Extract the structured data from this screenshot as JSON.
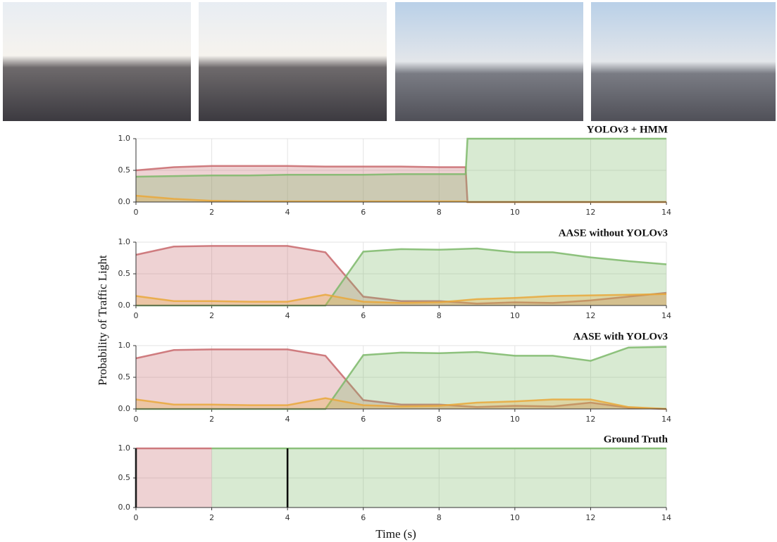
{
  "chart_data": [
    {
      "type": "area",
      "title": "YOLOv3 + HMM",
      "x": [
        0,
        1,
        2,
        3,
        4,
        5,
        6,
        7,
        8,
        8.7,
        8.75,
        9,
        10,
        11,
        12,
        13,
        14
      ],
      "series": [
        {
          "color": "#c8696c",
          "values": [
            0.5,
            0.55,
            0.57,
            0.57,
            0.57,
            0.56,
            0.56,
            0.56,
            0.55,
            0.55,
            0,
            0,
            0,
            0,
            0,
            0,
            0
          ]
        },
        {
          "color": "#7db86a",
          "values": [
            0.4,
            0.41,
            0.42,
            0.42,
            0.43,
            0.43,
            0.43,
            0.44,
            0.44,
            0.44,
            1.0,
            1.0,
            1.0,
            1.0,
            1.0,
            1.0,
            1.0
          ]
        },
        {
          "color": "#e9a83b",
          "values": [
            0.1,
            0.05,
            0.02,
            0.01,
            0.01,
            0.01,
            0.01,
            0.01,
            0.01,
            0.01,
            0,
            0,
            0,
            0,
            0,
            0,
            0
          ]
        }
      ],
      "xlim": [
        0,
        14
      ],
      "xticks": [
        0,
        2,
        4,
        6,
        8,
        10,
        12,
        14
      ],
      "ylim": [
        0,
        1
      ],
      "yticks": [
        {
          "value": 0,
          "label": "0.0"
        },
        0.5,
        {
          "value": 1,
          "label": "1.0"
        }
      ],
      "grid": true
    },
    {
      "type": "area",
      "title": "AASE without YOLOv3",
      "x": [
        0,
        1,
        2,
        3,
        4,
        5,
        6,
        7,
        8,
        9,
        10,
        11,
        12,
        13,
        14
      ],
      "series": [
        {
          "color": "#c8696c",
          "values": [
            0.8,
            0.93,
            0.94,
            0.94,
            0.94,
            0.84,
            0.14,
            0.07,
            0.07,
            0.03,
            0.05,
            0.04,
            0.08,
            0.14,
            0.2
          ]
        },
        {
          "color": "#7db86a",
          "values": [
            0,
            0,
            0,
            0,
            0,
            0,
            0.85,
            0.89,
            0.88,
            0.9,
            0.84,
            0.84,
            0.76,
            0.7,
            0.65
          ]
        },
        {
          "color": "#e9a83b",
          "values": [
            0.15,
            0.07,
            0.07,
            0.06,
            0.06,
            0.17,
            0.06,
            0.04,
            0.05,
            0.1,
            0.12,
            0.15,
            0.16,
            0.17,
            0.18
          ]
        }
      ],
      "xlim": [
        0,
        14
      ],
      "xticks": [
        0,
        2,
        4,
        6,
        8,
        10,
        12,
        14
      ],
      "ylim": [
        0,
        1
      ],
      "yticks": [
        {
          "value": 0,
          "label": "0.0"
        },
        0.5,
        {
          "value": 1,
          "label": "1.0"
        }
      ],
      "grid": true
    },
    {
      "type": "area",
      "title": "AASE with YOLOv3",
      "x": [
        0,
        1,
        2,
        3,
        4,
        5,
        6,
        7,
        8,
        9,
        10,
        11,
        12,
        13,
        14
      ],
      "series": [
        {
          "color": "#c8696c",
          "values": [
            0.8,
            0.93,
            0.94,
            0.94,
            0.94,
            0.84,
            0.14,
            0.07,
            0.07,
            0.03,
            0.05,
            0.04,
            0.1,
            0.02,
            0
          ]
        },
        {
          "color": "#7db86a",
          "values": [
            0,
            0,
            0,
            0,
            0,
            0,
            0.85,
            0.89,
            0.88,
            0.9,
            0.84,
            0.84,
            0.76,
            0.97,
            0.98
          ]
        },
        {
          "color": "#e9a83b",
          "values": [
            0.15,
            0.07,
            0.07,
            0.06,
            0.06,
            0.17,
            0.06,
            0.04,
            0.05,
            0.1,
            0.12,
            0.15,
            0.15,
            0.03,
            0
          ]
        }
      ],
      "xlim": [
        0,
        14
      ],
      "xticks": [
        0,
        2,
        4,
        6,
        8,
        10,
        12,
        14
      ],
      "ylim": [
        0,
        1
      ],
      "yticks": [
        {
          "value": 0,
          "label": "0.0"
        },
        0.5,
        {
          "value": 1,
          "label": "1.0"
        }
      ],
      "grid": true
    },
    {
      "type": "area",
      "title": "Ground Truth",
      "x": [
        0,
        2,
        14
      ],
      "series": [
        {
          "color": "#c8696c",
          "values": [
            1,
            1,
            null
          ]
        },
        {
          "color": "#7db86a",
          "values": [
            null,
            1,
            1
          ]
        }
      ],
      "vlines": [
        0,
        4
      ],
      "xlim": [
        0,
        14
      ],
      "xticks": [
        0,
        2,
        4,
        6,
        8,
        10,
        12,
        14
      ],
      "ylim": [
        0,
        1
      ],
      "yticks": [
        {
          "value": 0,
          "label": "0.0"
        },
        0.5,
        {
          "value": 1,
          "label": "1.0"
        }
      ],
      "grid": true
    }
  ],
  "ylabel": "Probability of Traffic Light",
  "xlabel": "Time (s)"
}
